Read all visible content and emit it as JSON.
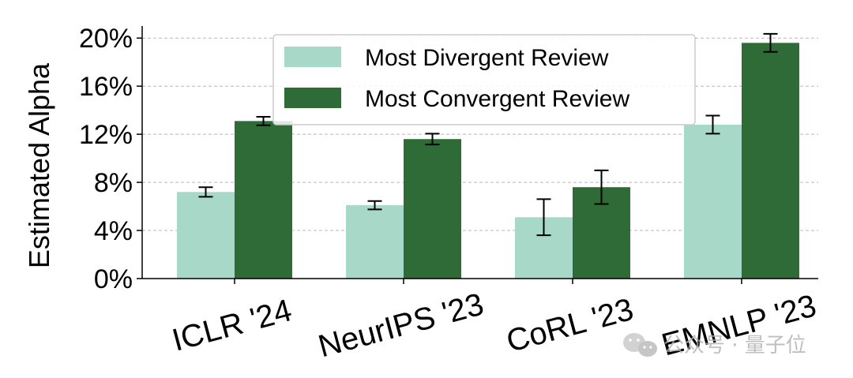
{
  "chart_data": {
    "type": "bar",
    "title": "",
    "xlabel": "",
    "ylabel": "Estimated Alpha",
    "ylim": [
      0,
      21
    ],
    "yticks": [
      0,
      4,
      8,
      12,
      16,
      20
    ],
    "ytick_labels": [
      "0%",
      "4%",
      "8%",
      "12%",
      "16%",
      "20%"
    ],
    "grid": "horizontal dashed",
    "legend_position": "top-center",
    "categories": [
      "ICLR '24",
      "NeurIPS '23",
      "CoRL '23",
      "EMNLP '23"
    ],
    "series": [
      {
        "name": "Most Divergent Review",
        "color": "#a8d8c8",
        "values": [
          7.2,
          6.1,
          5.1,
          12.8
        ],
        "errors": [
          0.4,
          0.35,
          1.5,
          0.75
        ]
      },
      {
        "name": "Most Convergent Review",
        "color": "#2e6b36",
        "values": [
          13.1,
          11.6,
          7.6,
          19.6
        ],
        "errors": [
          0.35,
          0.45,
          1.4,
          0.75
        ]
      }
    ]
  },
  "watermark": {
    "icon": "wechat-icon",
    "text": "公众号 · 量子位"
  }
}
